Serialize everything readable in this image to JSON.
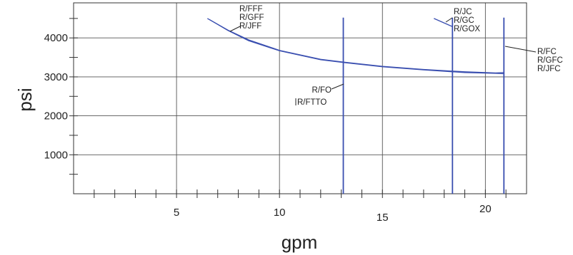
{
  "chart_data": {
    "type": "line",
    "title": "",
    "xlabel": "gpm",
    "ylabel": "psi",
    "xlim": [
      0,
      22
    ],
    "ylim": [
      0,
      4900
    ],
    "grid": true,
    "legend": "none",
    "colors": {
      "series": "#3a4fb0",
      "grid": "#555555",
      "axis": "#333333",
      "leader": "#222222"
    },
    "x_ticks": [
      5,
      10,
      15,
      20
    ],
    "x_tick_labels": [
      "5",
      "10",
      "15",
      "20"
    ],
    "x_minor_ticks": [
      1,
      2,
      3,
      4,
      6,
      7,
      8,
      9,
      11,
      12,
      13,
      14,
      16,
      17,
      18,
      19,
      21
    ],
    "y_ticks": [
      1000,
      2000,
      3000,
      4000
    ],
    "y_tick_labels": [
      "1000",
      "2000",
      "3000",
      "4000"
    ],
    "y_minor_ticks": [
      500,
      1500,
      2500,
      3500,
      4500
    ],
    "series": [
      {
        "x": [
          6.5,
          7.5,
          8.5,
          10,
          12,
          13.1,
          15,
          17,
          19,
          20.5,
          20.9
        ],
        "y": [
          4500,
          4200,
          3950,
          3680,
          3450,
          3380,
          3270,
          3190,
          3130,
          3100,
          3110
        ]
      },
      {
        "x": [
          6.6,
          7.5,
          8.5,
          10,
          12,
          13.1,
          15,
          17,
          19,
          20.5,
          20.9
        ],
        "y": [
          4470,
          4190,
          3930,
          3670,
          3440,
          3370,
          3260,
          3180,
          3110,
          3090,
          3080
        ]
      },
      {
        "x": [
          13.1,
          13.1
        ],
        "y": [
          0,
          4520
        ]
      },
      {
        "x": [
          18.4,
          18.4
        ],
        "y": [
          0,
          4520
        ]
      },
      {
        "x": [
          20.9,
          20.9
        ],
        "y": [
          0,
          4520
        ]
      },
      {
        "x": [
          17.5,
          18.4
        ],
        "y": [
          4500,
          4290
        ]
      }
    ],
    "annotations": [
      {
        "lines": [
          "R/FFF",
          "R/GFF",
          "R/JFF"
        ]
      },
      {
        "lines": [
          "R/JC",
          "R/GC",
          "R/GOX"
        ]
      },
      {
        "lines": [
          "R/FC",
          "R/GFC",
          "R/JFC"
        ]
      },
      {
        "lines": [
          "R/FO"
        ]
      },
      {
        "lines": [
          "R/FTTO"
        ]
      }
    ]
  }
}
